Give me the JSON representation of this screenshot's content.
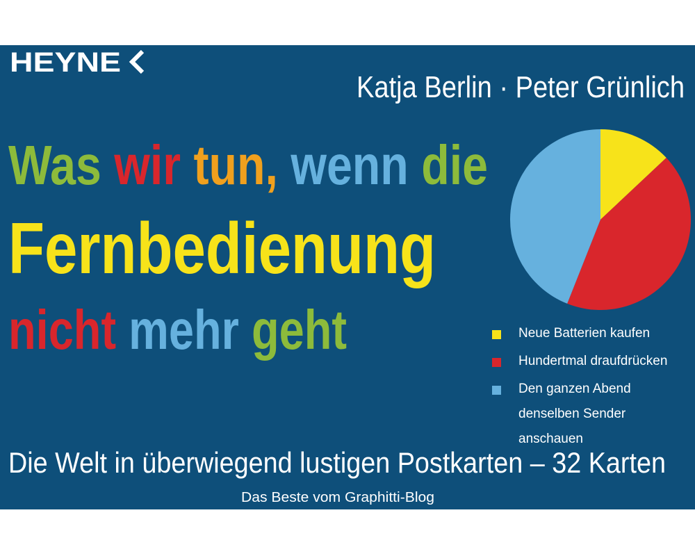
{
  "publisher": "HEYNE",
  "authors": "Katja Berlin · Peter Grünlich",
  "title_lines": [
    [
      {
        "text": "Was",
        "color": "#8dbb3b"
      },
      {
        "text": "wir",
        "color": "#d9262c"
      },
      {
        "text": "tun,",
        "color": "#f0a01e"
      },
      {
        "text": "wenn",
        "color": "#66b1de"
      },
      {
        "text": "die",
        "color": "#8dbb3b"
      }
    ],
    [
      {
        "text": "Fernbedienung",
        "color": "#f7e31a"
      }
    ],
    [
      {
        "text": "nicht",
        "color": "#d9262c"
      },
      {
        "text": "mehr",
        "color": "#66b1de"
      },
      {
        "text": "geht",
        "color": "#8dbb3b"
      }
    ]
  ],
  "subtitle": "Die Welt in überwiegend lustigen Postkarten – 32 Karten",
  "tagline": "Das Beste vom Graphitti-Blog",
  "chart_data": {
    "type": "pie",
    "categories": [
      "Neue Batterien kaufen",
      "Hundertmal draufdrücken",
      "Den ganzen Abend\ndenselben Sender anschauen"
    ],
    "values": [
      13,
      43,
      44
    ],
    "colors": [
      "#f7e31a",
      "#d9262c",
      "#66b1de"
    ]
  }
}
